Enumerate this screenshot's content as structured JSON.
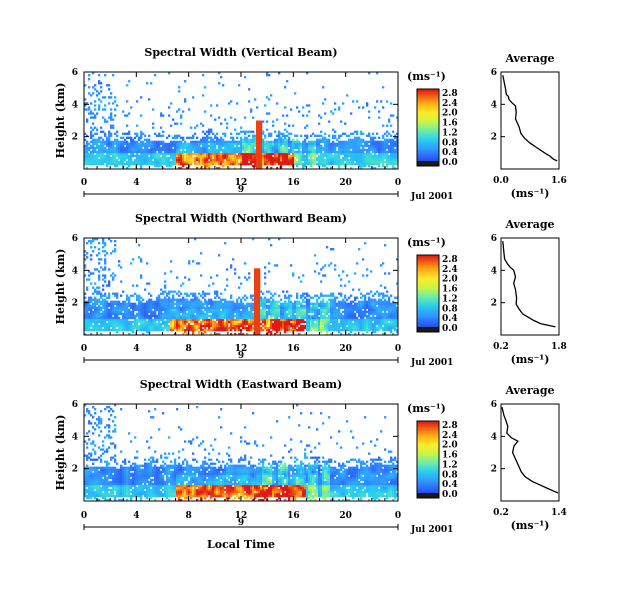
{
  "chart_data": [
    {
      "type": "heatmap",
      "title": "Spectral Width (Vertical Beam)",
      "ylabel": "Height (km)",
      "xlim": [
        0,
        24
      ],
      "ylim": [
        0,
        6
      ],
      "x_ticks": [
        "0",
        "4",
        "8",
        "12",
        "16",
        "20",
        "0"
      ],
      "y_ticks": [
        "6",
        "4",
        "2"
      ],
      "date_ticks": [
        "9",
        "Jul 2001"
      ],
      "colorbar": {
        "label": "(ms⁻¹)",
        "range": [
          0,
          2.8
        ],
        "ticks": [
          "2.8",
          "2.4",
          "2.0",
          "1.6",
          "1.2",
          "0.8",
          "0.4",
          "0.0"
        ]
      },
      "features": {
        "main_top_km": 1.8,
        "layer_top_km": 4.2,
        "high_start_h": 7,
        "high_end_h": 16,
        "spike_h": 13.4,
        "spike_top_km": 3.0,
        "col_hours": [
          12.5,
          13.2,
          14.1,
          15.2,
          16.3,
          17.4
        ]
      },
      "average_profile": {
        "title": "Average",
        "xlabel": "(ms⁻¹)",
        "xlim": [
          0,
          1.6
        ],
        "ylim": [
          0,
          6
        ],
        "x_ticks": [
          "0.0",
          "1.6"
        ],
        "y_ticks": [
          "6",
          "4",
          "2"
        ],
        "x": [
          0.05,
          0.12,
          0.15,
          0.2,
          0.22,
          0.3,
          0.4,
          0.42,
          0.4,
          0.5,
          0.55,
          0.65,
          0.8,
          1.0,
          1.2,
          1.35,
          1.45,
          1.55
        ],
        "y": [
          5.8,
          5.0,
          4.6,
          4.5,
          4.3,
          4.1,
          3.9,
          3.5,
          3.1,
          2.6,
          2.2,
          1.9,
          1.6,
          1.3,
          1.0,
          0.8,
          0.6,
          0.5
        ]
      }
    },
    {
      "type": "heatmap",
      "title": "Spectral Width (Northward Beam)",
      "ylabel": "Height (km)",
      "xlim": [
        0,
        24
      ],
      "ylim": [
        0,
        6
      ],
      "x_ticks": [
        "0",
        "4",
        "8",
        "12",
        "16",
        "20",
        "0"
      ],
      "y_ticks": [
        "6",
        "4",
        "2"
      ],
      "date_ticks": [
        "9",
        "Jul 2001"
      ],
      "colorbar": {
        "label": "(ms⁻¹)",
        "range": [
          0,
          2.8
        ],
        "ticks": [
          "2.8",
          "2.4",
          "2.0",
          "1.6",
          "1.2",
          "0.8",
          "0.4",
          "0.0"
        ]
      },
      "features": {
        "main_top_km": 2.1,
        "layer_top_km": 4.6,
        "high_start_h": 6.5,
        "high_end_h": 17,
        "spike_h": 13.2,
        "spike_top_km": 4.1,
        "col_hours": [
          13.6,
          14.6,
          15.6,
          16.6,
          17.6,
          18.4
        ]
      },
      "average_profile": {
        "title": "Average",
        "xlabel": "(ms⁻¹)",
        "xlim": [
          0.2,
          1.8
        ],
        "ylim": [
          0,
          6
        ],
        "x_ticks": [
          "0.2",
          "1.8"
        ],
        "y_ticks": [
          "6",
          "4",
          "2"
        ],
        "x": [
          0.25,
          0.28,
          0.3,
          0.38,
          0.45,
          0.55,
          0.6,
          0.55,
          0.6,
          0.63,
          0.62,
          0.7,
          0.8,
          0.95,
          1.1,
          1.3,
          1.5,
          1.7
        ],
        "y": [
          5.8,
          5.1,
          4.7,
          4.4,
          4.2,
          4.0,
          3.6,
          3.2,
          2.8,
          2.3,
          1.9,
          1.6,
          1.3,
          1.1,
          0.9,
          0.7,
          0.6,
          0.5
        ]
      }
    },
    {
      "type": "heatmap",
      "title": "Spectral Width (Eastward Beam)",
      "ylabel": "Height (km)",
      "xlim": [
        0,
        24
      ],
      "ylim": [
        0,
        6
      ],
      "x_ticks": [
        "0",
        "4",
        "8",
        "12",
        "16",
        "20",
        "0"
      ],
      "y_ticks": [
        "6",
        "4",
        "2"
      ],
      "date_ticks": [
        "9",
        "Jul 2001"
      ],
      "xlabel": "Local Time",
      "colorbar": {
        "label": "(ms⁻¹)",
        "range": [
          0,
          2.8
        ],
        "ticks": [
          "2.8",
          "2.4",
          "2.0",
          "1.6",
          "1.2",
          "0.8",
          "0.4",
          "0.0"
        ]
      },
      "features": {
        "main_top_km": 2.2,
        "layer_top_km": 4.0,
        "high_start_h": 7,
        "high_end_h": 17,
        "spike_h": -1,
        "spike_top_km": 0,
        "col_hours": [
          14.0,
          15.2,
          16.5,
          17.5,
          18.5
        ]
      },
      "average_profile": {
        "title": "Average",
        "xlabel": "(ms⁻¹)",
        "xlim": [
          0.2,
          1.4
        ],
        "ylim": [
          0,
          6
        ],
        "x_ticks": [
          "0.2",
          "1.4"
        ],
        "y_ticks": [
          "6",
          "4",
          "2"
        ],
        "x": [
          0.22,
          0.26,
          0.3,
          0.34,
          0.32,
          0.42,
          0.55,
          0.47,
          0.44,
          0.5,
          0.56,
          0.62,
          0.7,
          0.85,
          1.0,
          1.15,
          1.3,
          1.38
        ],
        "y": [
          5.8,
          5.3,
          5.0,
          4.6,
          4.2,
          3.9,
          3.7,
          3.4,
          3.0,
          2.6,
          2.2,
          1.8,
          1.5,
          1.2,
          1.0,
          0.8,
          0.6,
          0.5
        ]
      }
    }
  ]
}
